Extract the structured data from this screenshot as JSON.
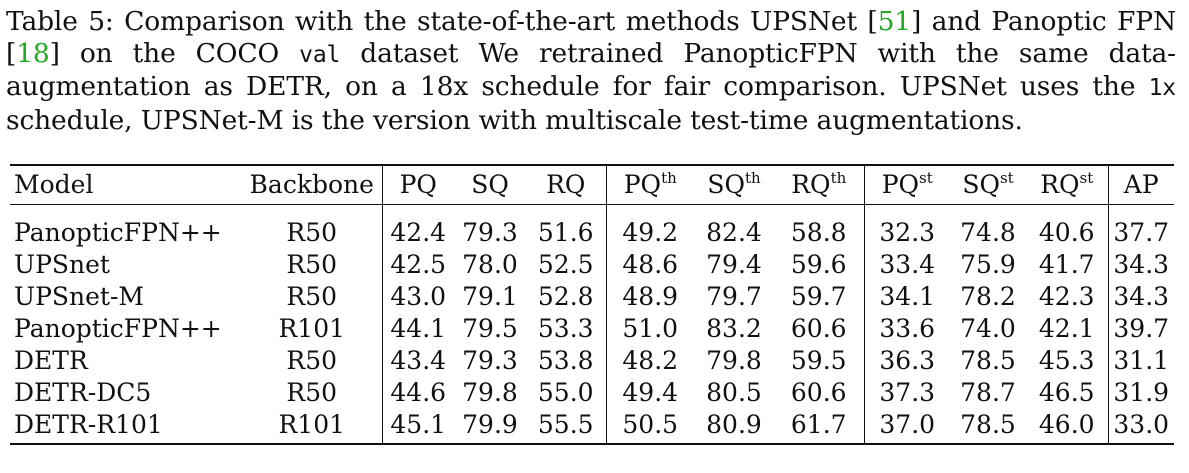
{
  "caption": {
    "lead": "Table 5: Comparison with the state-of-the-art methods UPSNet [",
    "ref1": "51",
    "mid1": "] and Panoptic FPN [",
    "ref2": "18",
    "mid2": "] on the COCO ",
    "val": "val",
    "mid3": " dataset We retrained PanopticFPN with the same data-augmentation as DETR, on a 18x schedule for fair comparison. UPSNet uses the ",
    "sched": "1x",
    "tail": " schedule, UPSNet-M is the version with multiscale test-time augmentations."
  },
  "table": {
    "headers": {
      "model": "Model",
      "backbone": "Backbone",
      "pq": "PQ",
      "sq": "SQ",
      "rq": "RQ",
      "pq_th": "PQ",
      "sq_th": "SQ",
      "rq_th": "RQ",
      "th_sup": "th",
      "pq_st": "PQ",
      "sq_st": "SQ",
      "rq_st": "RQ",
      "st_sup": "st",
      "ap": "AP"
    },
    "rows": [
      {
        "model": "PanopticFPN++",
        "backbone": "R50",
        "pq": "42.4",
        "sq": "79.3",
        "rq": "51.6",
        "pq_th": "49.2",
        "sq_th": "82.4",
        "rq_th": "58.8",
        "pq_st": "32.3",
        "sq_st": "74.8",
        "rq_st": "40.6",
        "ap": "37.7"
      },
      {
        "model": "UPSnet",
        "backbone": "R50",
        "pq": "42.5",
        "sq": "78.0",
        "rq": "52.5",
        "pq_th": "48.6",
        "sq_th": "79.4",
        "rq_th": "59.6",
        "pq_st": "33.4",
        "sq_st": "75.9",
        "rq_st": "41.7",
        "ap": "34.3"
      },
      {
        "model": "UPSnet-M",
        "backbone": "R50",
        "pq": "43.0",
        "sq": "79.1",
        "rq": "52.8",
        "pq_th": "48.9",
        "sq_th": "79.7",
        "rq_th": "59.7",
        "pq_st": "34.1",
        "sq_st": "78.2",
        "rq_st": "42.3",
        "ap": "34.3"
      },
      {
        "model": "PanopticFPN++",
        "backbone": "R101",
        "pq": "44.1",
        "sq": "79.5",
        "rq": "53.3",
        "pq_th": "51.0",
        "sq_th": "83.2",
        "rq_th": "60.6",
        "pq_st": "33.6",
        "sq_st": "74.0",
        "rq_st": "42.1",
        "ap": "39.7"
      },
      {
        "model": "DETR",
        "backbone": "R50",
        "pq": "43.4",
        "sq": "79.3",
        "rq": "53.8",
        "pq_th": "48.2",
        "sq_th": "79.8",
        "rq_th": "59.5",
        "pq_st": "36.3",
        "sq_st": "78.5",
        "rq_st": "45.3",
        "ap": "31.1"
      },
      {
        "model": "DETR-DC5",
        "backbone": "R50",
        "pq": "44.6",
        "sq": "79.8",
        "rq": "55.0",
        "pq_th": "49.4",
        "sq_th": "80.5",
        "rq_th": "60.6",
        "pq_st": "37.3",
        "sq_st": "78.7",
        "rq_st": "46.5",
        "ap": "31.9"
      },
      {
        "model": "DETR-R101",
        "backbone": "R101",
        "pq": "45.1",
        "sq": "79.9",
        "rq": "55.5",
        "pq_th": "50.5",
        "sq_th": "80.9",
        "rq_th": "61.7",
        "pq_st": "37.0",
        "sq_st": "78.5",
        "rq_st": "46.0",
        "ap": "33.0"
      }
    ],
    "bold_cells": [
      "3.pq_th",
      "3.sq_th",
      "3.ap",
      "5.pq_st",
      "5.sq_st",
      "5.rq_st",
      "6.pq",
      "6.sq",
      "6.rq",
      "6.rq_th"
    ]
  }
}
